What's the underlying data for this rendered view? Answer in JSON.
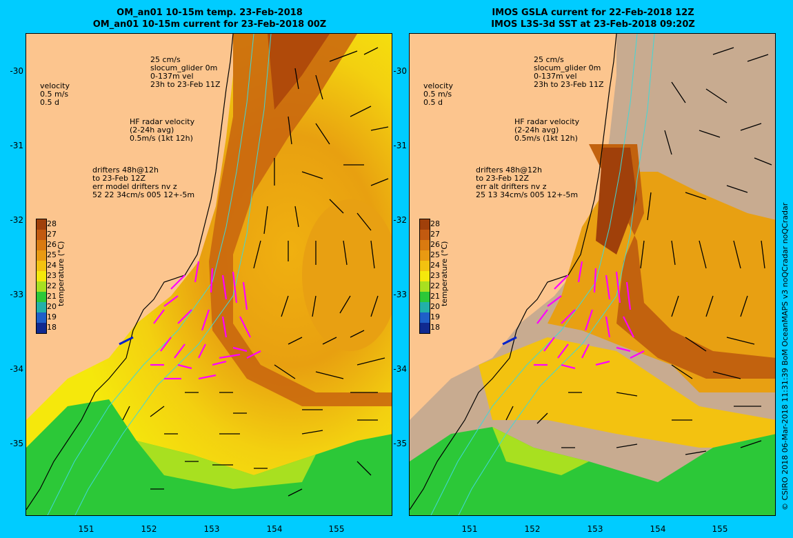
{
  "left_panel": {
    "title_line1": "OM_an01 10-15m temp. 23-Feb-2018",
    "title_line2": "OM_an01 10-15m current for 23-Feb-2018 00Z",
    "legend_glider": [
      "25 cm/s",
      "slocum_glider 0m",
      "0-137m vel",
      "23h to 23-Feb 11Z"
    ],
    "legend_velocity": [
      "velocity",
      "0.5 m/s",
      "0.5 d"
    ],
    "legend_hf": [
      "HF radar velocity",
      "(2-24h avg)",
      "0.5m/s (1kt 12h)"
    ],
    "legend_drifters": [
      "drifters 48h@12h",
      "to 23-Feb 12Z",
      "err model drifters nv z",
      "52 22 34cm/s 005 12+-5m"
    ]
  },
  "right_panel": {
    "title_line1": "IMOS GSLA current for 22-Feb-2018 12Z",
    "title_line2": "IMOS L3S-3d SST at 23-Feb-2018 09:20Z",
    "legend_glider": [
      "25 cm/s",
      "slocum_glider 0m",
      "0-137m vel",
      "23h to 23-Feb 11Z"
    ],
    "legend_velocity": [
      "velocity",
      "0.5 m/s",
      "0.5 d"
    ],
    "legend_hf": [
      "HF radar velocity",
      "(2-24h avg)",
      "0.5m/s (1kt 12h)"
    ],
    "legend_drifters": [
      "drifters 48h@12h",
      "to 23-Feb 12Z",
      "err alt drifters nv z",
      "25 13 34cm/s 005 12+-5m"
    ]
  },
  "axes": {
    "lat_ticks": [
      "-30",
      "-31",
      "-32",
      "-33",
      "-34",
      "-35"
    ],
    "lon_ticks": [
      "151",
      "152",
      "153",
      "154",
      "155"
    ]
  },
  "colorbar": {
    "title": "temperature (°C)",
    "labels": [
      "28",
      "27",
      "26",
      "25",
      "24",
      "23",
      "22",
      "21",
      "20",
      "19",
      "18"
    ],
    "colors": [
      "#a0400a",
      "#c25a10",
      "#d97a10",
      "#e99a12",
      "#f3c210",
      "#f5e80c",
      "#a8e020",
      "#2cc838",
      "#22b0a8",
      "#1f5fc8",
      "#102a90"
    ]
  },
  "colors": {
    "land": "#fcc58e",
    "background": "#00ccff",
    "hf_arrows": "#ff00ff",
    "glider": "#0022cc",
    "isobath": "#40d8d8",
    "no_data": "#c8ab90"
  },
  "credit": "© CSIRO 2018  06-Mar-2018 11:31:39 BoM OceanMAPS v3 noQCradar noQCradar"
}
